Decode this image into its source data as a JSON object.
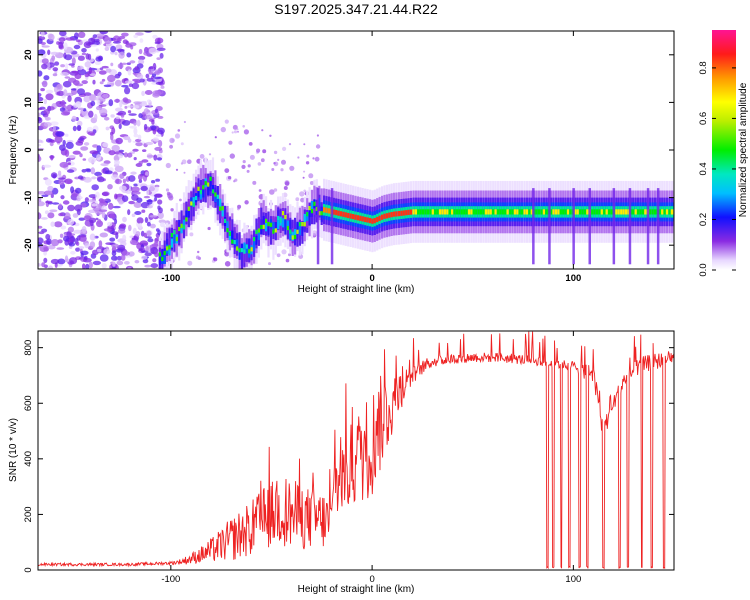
{
  "title": "S197.2025.347.21.44.R22",
  "chart_data": [
    {
      "type": "heatmap",
      "title": "S197.2025.347.21.44.R22",
      "xlabel": "Height of straight line (km)",
      "ylabel": "Frequency (Hz)",
      "xlim": [
        -166,
        150
      ],
      "ylim": [
        -25,
        25
      ],
      "xticks": [
        -100,
        0,
        100
      ],
      "yticks": [
        -20,
        -10,
        0,
        10,
        20
      ],
      "colorbar": {
        "label": "Normalized spectral amplitude",
        "range": [
          0,
          0.95
        ],
        "ticks": [
          0.0,
          0.2,
          0.4,
          0.6,
          0.8
        ]
      },
      "ridge": {
        "x": [
          -105,
          -100,
          -95,
          -90,
          -85,
          -80,
          -75,
          -70,
          -65,
          -60,
          -55,
          -50,
          -45,
          -40,
          -35,
          -30,
          -25,
          -20,
          -15,
          -10,
          -5,
          0,
          5,
          10,
          20,
          40,
          60,
          80,
          100,
          120,
          150
        ],
        "y": [
          -23,
          -19,
          -16,
          -11,
          -8,
          -7,
          -13,
          -18,
          -22,
          -20,
          -15,
          -17,
          -14,
          -18,
          -16,
          -12,
          -12.5,
          -13,
          -13.5,
          -14,
          -14.5,
          -15,
          -14,
          -13.5,
          -13,
          -13,
          -13,
          -13,
          -13,
          -13,
          -13
        ]
      }
    },
    {
      "type": "line",
      "xlabel": "Height of straight line (km)",
      "ylabel": "SNR (10 * v/v)",
      "xlim": [
        -166,
        150
      ],
      "ylim": [
        0,
        860
      ],
      "xticks": [
        -100,
        0,
        100
      ],
      "yticks": [
        0,
        200,
        400,
        600,
        800
      ],
      "series": [
        {
          "name": "SNR",
          "color": "#ee2222",
          "x": [
            -166,
            -140,
            -120,
            -100,
            -95,
            -90,
            -85,
            -80,
            -75,
            -70,
            -65,
            -60,
            -55,
            -50,
            -45,
            -40,
            -35,
            -30,
            -25,
            -20,
            -19,
            -15,
            -10,
            -5,
            0,
            5,
            10,
            15,
            20,
            25,
            30,
            40,
            50,
            60,
            70,
            80,
            85,
            90,
            95,
            100,
            105,
            110,
            113,
            115,
            118,
            120,
            125,
            130,
            135,
            140,
            145,
            150
          ],
          "y": [
            20,
            20,
            20,
            25,
            30,
            40,
            55,
            70,
            90,
            110,
            130,
            150,
            180,
            200,
            220,
            200,
            190,
            185,
            180,
            170,
            300,
            330,
            380,
            420,
            460,
            540,
            600,
            660,
            700,
            730,
            750,
            760,
            765,
            765,
            760,
            755,
            750,
            745,
            740,
            735,
            720,
            700,
            580,
            500,
            560,
            600,
            680,
            720,
            740,
            750,
            755,
            760
          ],
          "noise": [
            5,
            5,
            5,
            6,
            10,
            20,
            30,
            45,
            60,
            80,
            90,
            100,
            110,
            120,
            130,
            130,
            120,
            110,
            110,
            100,
            120,
            140,
            160,
            180,
            200,
            170,
            120,
            70,
            40,
            25,
            20,
            18,
            18,
            18,
            18,
            18,
            18,
            18,
            18,
            18,
            30,
            40,
            40,
            40,
            30,
            30,
            30,
            30,
            30,
            30,
            30,
            30
          ],
          "dropouts": [
            87,
            90,
            94,
            98,
            103,
            107,
            115,
            123,
            127,
            134,
            139,
            145
          ]
        }
      ]
    }
  ]
}
